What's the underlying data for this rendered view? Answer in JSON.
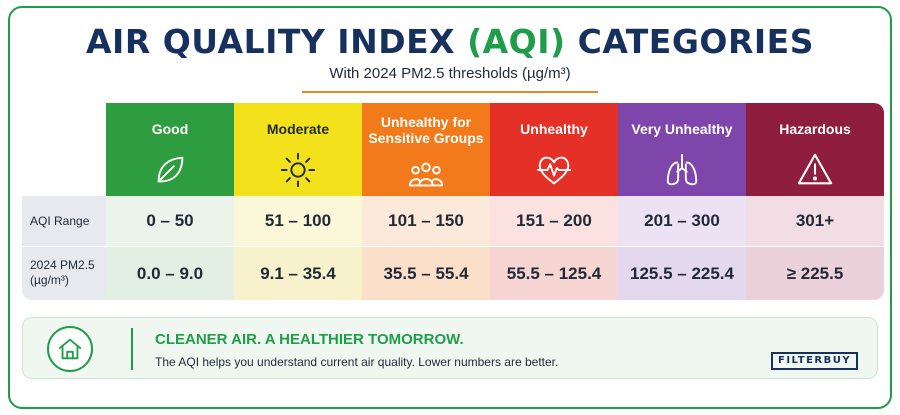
{
  "header": {
    "title_main": "AIR QUALITY INDEX ",
    "title_accent": "(AQI)",
    "title_tail": " CATEGORIES",
    "subtitle": "With 2024 PM2.5 thresholds (µg/m³)"
  },
  "table": {
    "row_labels": {
      "aqi": "AQI Range",
      "pm_line1": "2024 PM2.5",
      "pm_line2": "(µg/m³)"
    },
    "categories": [
      {
        "name": "Good",
        "name_line2": "",
        "icon": "leaf-icon",
        "header_color": "#2e9d3f",
        "aqi_bg": "#eaf4ea",
        "pm_bg": "#e4efe4",
        "aqi": "0 – 50",
        "pm25": "0.0 – 9.0"
      },
      {
        "name": "Moderate",
        "name_line2": "",
        "icon": "sun-icon",
        "header_color": "#f3e21b",
        "aqi_bg": "#fbf8da",
        "pm_bg": "#f7f2cc",
        "aqi": "51 – 100",
        "pm25": "9.1 – 35.4"
      },
      {
        "name": "Unhealthy for",
        "name_line2": "Sensitive Groups",
        "icon": "people-group-icon",
        "header_color": "#f27a1a",
        "aqi_bg": "#fde9d9",
        "pm_bg": "#fbdfc9",
        "aqi": "101 – 150",
        "pm25": "35.5 – 55.4"
      },
      {
        "name": "Unhealthy",
        "name_line2": "",
        "icon": "heart-pulse-icon",
        "header_color": "#e43026",
        "aqi_bg": "#fbe1df",
        "pm_bg": "#f7d5d2",
        "aqi": "151 – 200",
        "pm25": "55.5 – 125.4"
      },
      {
        "name": "Very Unhealthy",
        "name_line2": "",
        "icon": "lungs-icon",
        "header_color": "#7e45ab",
        "aqi_bg": "#ece2f3",
        "pm_bg": "#e4d8ee",
        "aqi": "201 – 300",
        "pm25": "125.5 – 225.4"
      },
      {
        "name": "Hazardous",
        "name_line2": "",
        "icon": "warning-triangle-icon",
        "header_color": "#8e1d3e",
        "aqi_bg": "#f1dde3",
        "pm_bg": "#ebd2da",
        "aqi": "301+",
        "pm25": "≥ 225.5"
      }
    ]
  },
  "banner": {
    "icon": "home-icon",
    "title": "CLEANER AIR. A HEALTHIER TOMORROW.",
    "text": "The AQI helps you understand current air quality. Lower numbers are better.",
    "brand": "FILTERBUY"
  },
  "colors": {
    "navy": "#17315e",
    "green": "#1f9d4b",
    "orange_rule": "#e08a28"
  }
}
